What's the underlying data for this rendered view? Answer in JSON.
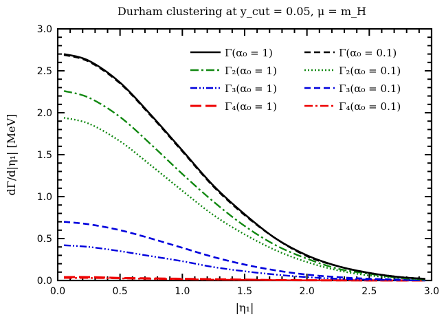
{
  "chart_data": {
    "type": "line",
    "title": "Durham clustering at y_cut = 0.05, μ = m_H",
    "xlabel": "|η₁|",
    "ylabel": "dΓ/d|η₁| [MeV]",
    "xlim": [
      0.0,
      3.0
    ],
    "ylim": [
      0.0,
      3.0
    ],
    "x_ticks": [
      "0.0",
      "0.5",
      "1.0",
      "1.5",
      "2.0",
      "2.5",
      "3.0"
    ],
    "y_ticks": [
      "0.0",
      "0.5",
      "1.0",
      "1.5",
      "2.0",
      "2.5",
      "3.0"
    ],
    "grid": false,
    "legend_position": "top-right",
    "x": [
      0.05,
      0.25,
      0.5,
      0.75,
      1.0,
      1.25,
      1.5,
      1.75,
      2.0,
      2.25,
      2.5,
      2.75,
      2.95
    ],
    "series": [
      {
        "name": "Γ(α₀ = 1)",
        "color": "#000000",
        "dash": "solid",
        "values": [
          2.7,
          2.62,
          2.36,
          1.97,
          1.55,
          1.13,
          0.79,
          0.5,
          0.3,
          0.17,
          0.09,
          0.04,
          0.02
        ]
      },
      {
        "name": "Γ(α₀ = 0.1)",
        "color": "#000000",
        "dash": "dashed",
        "values": [
          2.69,
          2.61,
          2.35,
          1.96,
          1.54,
          1.12,
          0.78,
          0.5,
          0.29,
          0.17,
          0.09,
          0.04,
          0.02
        ]
      },
      {
        "name": "Γ₂(α₀ = 1)",
        "color": "#118811",
        "dash": "dashdot",
        "values": [
          2.26,
          2.18,
          1.95,
          1.62,
          1.27,
          0.94,
          0.65,
          0.42,
          0.26,
          0.14,
          0.08,
          0.03,
          0.01
        ]
      },
      {
        "name": "Γ₂(α₀ = 0.1)",
        "color": "#118811",
        "dash": "dotted",
        "values": [
          1.94,
          1.87,
          1.66,
          1.37,
          1.07,
          0.78,
          0.55,
          0.36,
          0.22,
          0.12,
          0.06,
          0.03,
          0.01
        ]
      },
      {
        "name": "Γ₃(α₀ = 1)",
        "color": "#0000dd",
        "dash": "dashdotdot",
        "values": [
          0.42,
          0.4,
          0.35,
          0.29,
          0.23,
          0.16,
          0.11,
          0.07,
          0.04,
          0.02,
          0.01,
          0.005,
          0.0
        ]
      },
      {
        "name": "Γ₃(α₀ = 0.1)",
        "color": "#0000dd",
        "dash": "dashed",
        "values": [
          0.7,
          0.67,
          0.6,
          0.5,
          0.39,
          0.28,
          0.19,
          0.12,
          0.07,
          0.04,
          0.02,
          0.01,
          0.0
        ]
      },
      {
        "name": "Γ₄(α₀ = 1)",
        "color": "#ee0000",
        "dash": "longdash",
        "values": [
          0.04,
          0.04,
          0.03,
          0.025,
          0.02,
          0.015,
          0.01,
          0.005,
          0.003,
          0.002,
          0.001,
          0.0,
          0.0
        ]
      },
      {
        "name": "Γ₄(α₀ = 0.1)",
        "color": "#ee0000",
        "dash": "dashdot",
        "values": [
          0.03,
          0.03,
          0.025,
          0.02,
          0.015,
          0.01,
          0.007,
          0.004,
          0.002,
          0.001,
          0.0,
          0.0,
          0.0
        ]
      }
    ]
  }
}
